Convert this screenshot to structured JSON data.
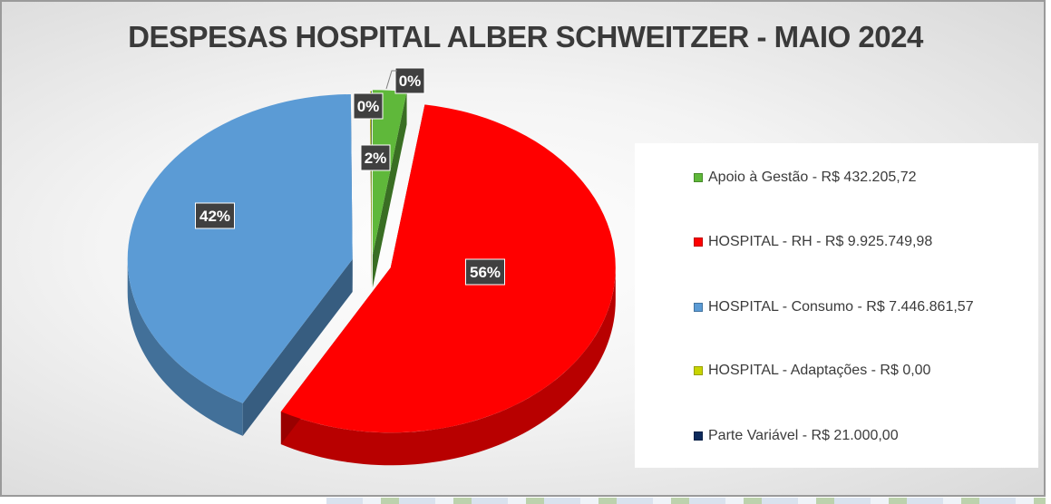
{
  "chart_data": {
    "type": "pie",
    "title": "DESPESAS HOSPITAL ALBER SCHWEITZER - MAIO 2024",
    "slices": [
      {
        "label": "Apoio à Gestão - R$ 432.205,72",
        "value": 432205.72,
        "percent_label": "2%",
        "color": "#5fb83a"
      },
      {
        "label": "HOSPITAL - RH - R$ 9.925.749,98",
        "value": 9925749.98,
        "percent_label": "56%",
        "color": "#ff0000"
      },
      {
        "label": "HOSPITAL - Consumo - R$ 7.446.861,57",
        "value": 7446861.57,
        "percent_label": "42%",
        "color": "#5b9bd5"
      },
      {
        "label": "HOSPITAL - Adaptações - R$ 0,00",
        "value": 0.0,
        "percent_label": "0%",
        "color": "#c8d400"
      },
      {
        "label": "Parte Variável - R$ 21.000,00",
        "value": 21000.0,
        "percent_label": "0%",
        "color": "#0d2a5c"
      }
    ],
    "legend_position": "right"
  }
}
